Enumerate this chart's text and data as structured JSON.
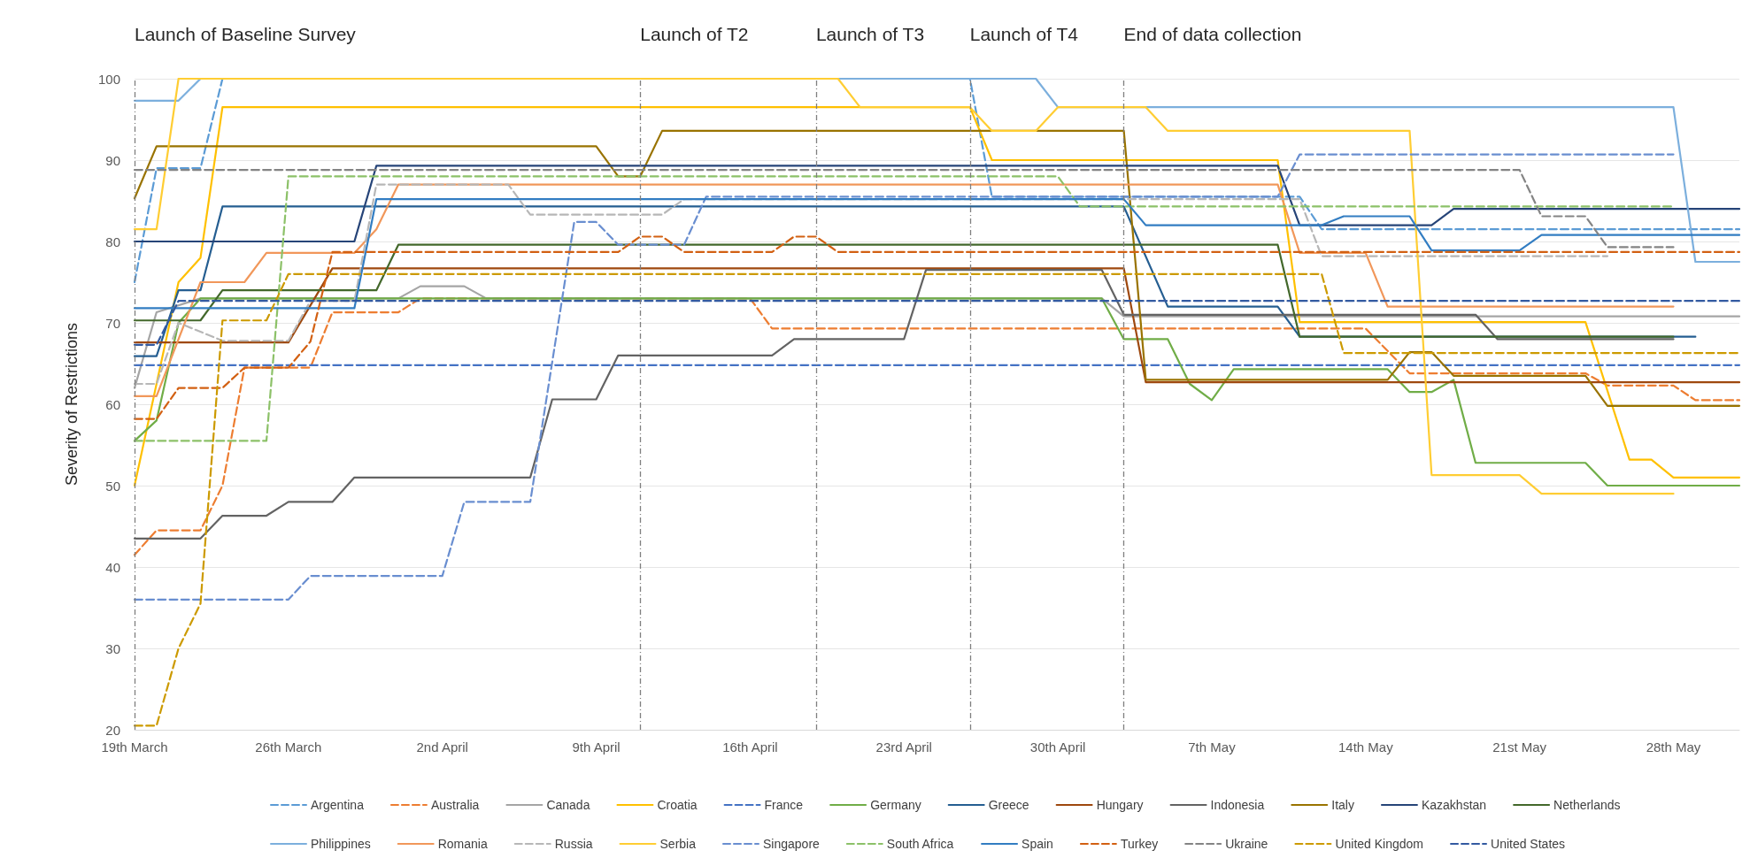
{
  "chart_data": {
    "type": "line",
    "ylabel": "Severity of Restrictions",
    "xlim": [
      "--03-19",
      "--05-31"
    ],
    "ylim": [
      20,
      100
    ],
    "yticks": [
      20,
      30,
      40,
      50,
      60,
      70,
      80,
      90,
      100
    ],
    "xticks": [
      {
        "value": "--03-19",
        "label": "19th March"
      },
      {
        "value": "--03-26",
        "label": "26th March"
      },
      {
        "value": "--04-02",
        "label": "2nd April"
      },
      {
        "value": "--04-09",
        "label": "9th April"
      },
      {
        "value": "--04-16",
        "label": "16th April"
      },
      {
        "value": "--04-23",
        "label": "23rd April"
      },
      {
        "value": "--04-30",
        "label": "30th April"
      },
      {
        "value": "--05-07",
        "label": "7th May"
      },
      {
        "value": "--05-14",
        "label": "14th May"
      },
      {
        "value": "--05-21",
        "label": "21st May"
      },
      {
        "value": "--05-28",
        "label": "28th May"
      }
    ],
    "grid": "y",
    "legend": "bottom",
    "marker": "none",
    "ref_lines": [
      {
        "axis": "x",
        "value": "--03-19",
        "label": "Launch of Baseline Survey",
        "color": "#7f7f7f",
        "line_style": "dashed"
      },
      {
        "axis": "x",
        "value": "--04-11",
        "label": "Launch of T2",
        "color": "#7f7f7f",
        "line_style": "dashed"
      },
      {
        "axis": "x",
        "value": "--04-19",
        "label": "Launch of T3",
        "color": "#7f7f7f",
        "line_style": "dashed"
      },
      {
        "axis": "x",
        "value": "--04-26",
        "label": "Launch of T4",
        "color": "#7f7f7f",
        "line_style": "dashed"
      },
      {
        "axis": "x",
        "value": "--05-03",
        "label": "End of data collection",
        "color": "#7f7f7f",
        "line_style": "dashed"
      }
    ],
    "series": [
      {
        "name": "Argentina",
        "color": "#5b9bd5",
        "line_style": "dashed",
        "x": [
          "--03-19",
          "--03-20",
          "--03-22",
          "--03-23",
          "--04-26",
          "--04-27",
          "--05-11",
          "--05-12",
          "--05-31"
        ],
        "values": [
          75,
          89,
          89,
          100,
          100,
          85.5,
          85.5,
          81.5,
          81.5
        ]
      },
      {
        "name": "Australia",
        "color": "#ed7d31",
        "line_style": "dashed",
        "x": [
          "--03-19",
          "--03-20",
          "--03-22",
          "--03-23",
          "--03-24",
          "--03-27",
          "--03-28",
          "--03-31",
          "--04-01",
          "--04-16",
          "--04-17",
          "--05-14",
          "--05-16",
          "--05-24",
          "--05-25",
          "--05-28",
          "--05-29",
          "--05-31"
        ],
        "values": [
          41.5,
          44.5,
          44.5,
          50,
          64.5,
          64.5,
          71.3,
          71.3,
          73,
          73,
          69.3,
          69.3,
          63.8,
          63.8,
          62.3,
          62.3,
          60.5,
          60.5
        ]
      },
      {
        "name": "Canada",
        "color": "#a5a5a5",
        "x": [
          "--03-19",
          "--03-20",
          "--03-22",
          "--03-31",
          "--04-01",
          "--04-03",
          "--04-04",
          "--05-02",
          "--05-03",
          "--05-31"
        ],
        "values": [
          62,
          71.3,
          73,
          73,
          74.5,
          74.5,
          73,
          73,
          70.8,
          70.8
        ]
      },
      {
        "name": "Croatia",
        "color": "#ffc000",
        "x": [
          "--03-19",
          "--03-21",
          "--03-22",
          "--03-23",
          "--04-26",
          "--04-27",
          "--05-10",
          "--05-11",
          "--05-24",
          "--05-26",
          "--05-27",
          "--05-28",
          "--05-31"
        ],
        "values": [
          50,
          75,
          78,
          96.5,
          96.5,
          90,
          90,
          70.1,
          70.1,
          53.2,
          53.2,
          51,
          51
        ]
      },
      {
        "name": "France",
        "color": "#4472c4",
        "line_style": "dashed",
        "x": [
          "--03-19",
          "--05-31"
        ],
        "values": [
          64.8,
          64.8
        ]
      },
      {
        "name": "Germany",
        "color": "#70ad47",
        "x": [
          "--03-19",
          "--03-20",
          "--03-21",
          "--03-22",
          "--05-02",
          "--05-03",
          "--05-05",
          "--05-06",
          "--05-07",
          "--05-08",
          "--05-15",
          "--05-16",
          "--05-17",
          "--05-18",
          "--05-19",
          "--05-24",
          "--05-25",
          "--05-31"
        ],
        "values": [
          55.5,
          58,
          70,
          73,
          73,
          68,
          68,
          62.5,
          60.5,
          64.3,
          64.3,
          61.5,
          61.5,
          63,
          52.8,
          52.8,
          50,
          50
        ]
      },
      {
        "name": "Greece",
        "color": "#255e91",
        "x": [
          "--03-19",
          "--03-20",
          "--03-21",
          "--03-22",
          "--03-23",
          "--05-03",
          "--05-05",
          "--05-10",
          "--05-11",
          "--05-29"
        ],
        "values": [
          65.9,
          65.9,
          74,
          74,
          84.3,
          84.3,
          72,
          72,
          68.3,
          68.3
        ]
      },
      {
        "name": "Hungary",
        "color": "#9e480e",
        "x": [
          "--03-19",
          "--03-26",
          "--03-28",
          "--05-03",
          "--05-04",
          "--05-31"
        ],
        "values": [
          67.6,
          67.6,
          76.7,
          76.7,
          62.7,
          62.7
        ]
      },
      {
        "name": "Indonesia",
        "color": "#636363",
        "x": [
          "--03-19",
          "--03-22",
          "--03-23",
          "--03-25",
          "--03-26",
          "--03-28",
          "--03-29",
          "--04-06",
          "--04-07",
          "--04-09",
          "--04-10",
          "--04-17",
          "--04-18",
          "--04-23",
          "--04-24",
          "--05-02",
          "--05-03",
          "--05-19",
          "--05-20",
          "--05-28"
        ],
        "values": [
          43.5,
          43.5,
          46.3,
          46.3,
          48,
          48,
          51,
          51,
          60.6,
          60.6,
          66,
          66,
          68,
          68,
          76.5,
          76.5,
          71,
          71,
          68,
          68
        ]
      },
      {
        "name": "Italy",
        "color": "#997300",
        "x": [
          "--03-19",
          "--03-20",
          "--04-09",
          "--04-10",
          "--04-11",
          "--04-12",
          "--05-03",
          "--05-04",
          "--05-15",
          "--05-16",
          "--05-17",
          "--05-18",
          "--05-24",
          "--05-25",
          "--05-31"
        ],
        "values": [
          85.3,
          91.7,
          91.7,
          88,
          88,
          93.6,
          93.6,
          63,
          63,
          66.4,
          66.4,
          63.5,
          63.5,
          59.8,
          59.8
        ]
      },
      {
        "name": "Kazakhstan",
        "color": "#264478",
        "x": [
          "--03-19",
          "--03-29",
          "--03-30",
          "--05-10",
          "--05-11",
          "--05-17",
          "--05-18",
          "--05-31"
        ],
        "values": [
          80,
          80,
          89.3,
          89.3,
          82,
          82,
          84,
          84
        ]
      },
      {
        "name": "Netherlands",
        "color": "#43682b",
        "x": [
          "--03-19",
          "--03-22",
          "--03-23",
          "--03-30",
          "--03-31",
          "--05-10",
          "--05-11",
          "--05-28"
        ],
        "values": [
          70.3,
          70.3,
          74,
          74,
          79.6,
          79.6,
          68.3,
          68.3
        ]
      },
      {
        "name": "Philippines",
        "color": "#7cafdd",
        "x": [
          "--03-19",
          "--03-21",
          "--03-22",
          "--04-29",
          "--04-30",
          "--05-28",
          "--05-29",
          "--05-31"
        ],
        "values": [
          97.3,
          97.3,
          100,
          100,
          96.5,
          96.5,
          77.5,
          77.5
        ]
      },
      {
        "name": "Romania",
        "color": "#f1975a",
        "x": [
          "--03-19",
          "--03-20",
          "--03-22",
          "--03-24",
          "--03-25",
          "--03-29",
          "--03-30",
          "--03-31",
          "--05-10",
          "--05-11",
          "--05-14",
          "--05-15",
          "--05-28"
        ],
        "values": [
          61,
          61,
          75,
          75,
          78.6,
          78.6,
          81.5,
          87,
          87,
          78.6,
          78.6,
          72,
          72
        ]
      },
      {
        "name": "Russia",
        "color": "#b7b7b7",
        "line_style": "dashed",
        "x": [
          "--03-19",
          "--03-20",
          "--03-21",
          "--03-23",
          "--03-26",
          "--03-27",
          "--03-29",
          "--03-30",
          "--04-05",
          "--04-06",
          "--04-12",
          "--04-13",
          "--05-11",
          "--05-12",
          "--05-25"
        ],
        "values": [
          62.5,
          62.5,
          70,
          67.8,
          67.8,
          72.7,
          72.7,
          87,
          87,
          83.3,
          83.3,
          85.2,
          85.2,
          78.2,
          78.2
        ]
      },
      {
        "name": "Serbia",
        "color": "#ffcd33",
        "x": [
          "--03-19",
          "--03-20",
          "--03-21",
          "--04-20",
          "--04-21",
          "--04-26",
          "--04-27",
          "--04-29",
          "--04-30",
          "--05-04",
          "--05-05",
          "--05-16",
          "--05-17",
          "--05-21",
          "--05-22",
          "--05-28"
        ],
        "values": [
          81.5,
          81.5,
          100,
          100,
          96.5,
          96.5,
          93.6,
          93.6,
          96.5,
          96.5,
          93.6,
          93.6,
          51.3,
          51.3,
          49,
          49
        ]
      },
      {
        "name": "Singapore",
        "color": "#698ed0",
        "line_style": "dashed",
        "x": [
          "--03-19",
          "--03-26",
          "--03-27",
          "--04-02",
          "--04-03",
          "--04-06",
          "--04-08",
          "--04-09",
          "--04-10",
          "--04-13",
          "--04-14",
          "--05-10",
          "--05-11",
          "--05-28"
        ],
        "values": [
          36,
          36,
          38.9,
          38.9,
          48,
          48,
          82.4,
          82.4,
          79.6,
          79.6,
          85.5,
          85.5,
          90.7,
          90.7
        ]
      },
      {
        "name": "South Africa",
        "color": "#8cc168",
        "line_style": "dashed",
        "x": [
          "--03-19",
          "--03-25",
          "--03-26",
          "--04-30",
          "--05-01",
          "--05-28"
        ],
        "values": [
          55.5,
          55.5,
          88,
          88,
          84.3,
          84.3
        ]
      },
      {
        "name": "Spain",
        "color": "#327dc2",
        "x": [
          "--03-19",
          "--03-29",
          "--03-30",
          "--05-03",
          "--05-04",
          "--05-12",
          "--05-13",
          "--05-16",
          "--05-17",
          "--05-21",
          "--05-22",
          "--05-31"
        ],
        "values": [
          71.8,
          71.8,
          85.2,
          85.2,
          82,
          82,
          83.1,
          83.1,
          78.9,
          78.9,
          80.8,
          80.8
        ]
      },
      {
        "name": "Turkey",
        "color": "#d26012",
        "line_style": "dashed",
        "x": [
          "--03-19",
          "--03-20",
          "--03-21",
          "--03-23",
          "--03-24",
          "--03-26",
          "--03-27",
          "--03-28",
          "--04-10",
          "--04-11",
          "--04-12",
          "--04-13",
          "--04-17",
          "--04-18",
          "--04-19",
          "--04-20",
          "--05-31"
        ],
        "values": [
          58.2,
          58.2,
          62,
          62,
          64.5,
          64.5,
          67.7,
          78.7,
          78.7,
          80.6,
          80.6,
          78.7,
          78.7,
          80.6,
          80.6,
          78.7,
          78.7
        ]
      },
      {
        "name": "Ukraine",
        "color": "#848484",
        "line_style": "dashed",
        "x": [
          "--03-19",
          "--05-21",
          "--05-22",
          "--05-24",
          "--05-25",
          "--05-28"
        ],
        "values": [
          88.8,
          88.8,
          83.1,
          83.1,
          79.3,
          79.3
        ]
      },
      {
        "name": "United Kingdom",
        "color": "#cc9a00",
        "line_style": "dashed",
        "x": [
          "--03-19",
          "--03-20",
          "--03-21",
          "--03-22",
          "--03-23",
          "--03-25",
          "--03-26",
          "--05-12",
          "--05-13",
          "--05-31"
        ],
        "values": [
          20.5,
          20.5,
          30,
          35.5,
          70.3,
          70.3,
          76,
          76,
          66.3,
          66.3
        ]
      },
      {
        "name": "United States",
        "color": "#335aa1",
        "line_style": "dashed",
        "x": [
          "--03-19",
          "--03-20",
          "--03-21",
          "--05-31"
        ],
        "values": [
          67.3,
          67.3,
          72.7,
          72.7
        ]
      }
    ]
  }
}
